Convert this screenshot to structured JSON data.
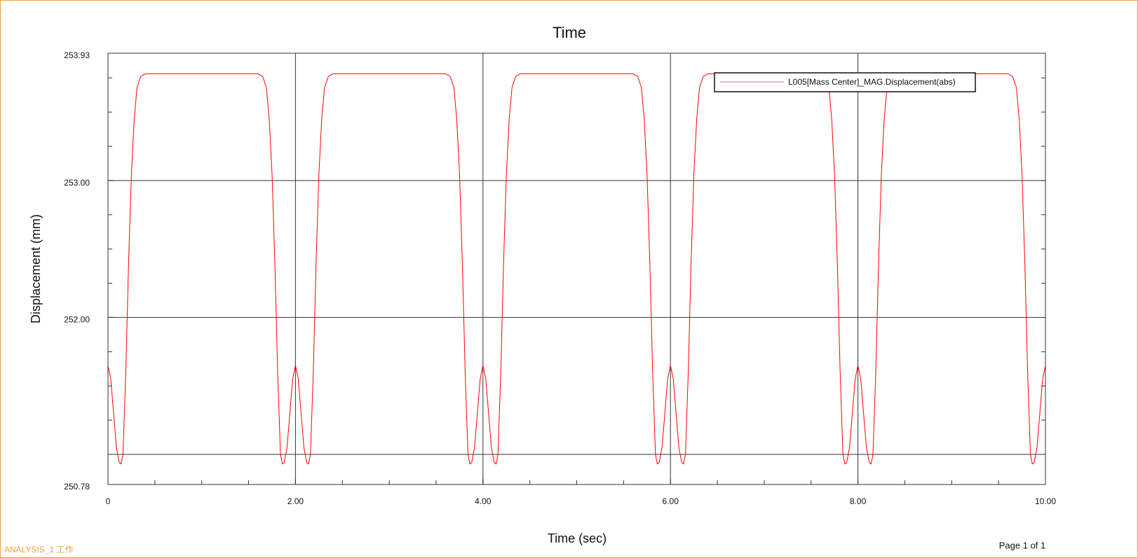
{
  "chart_data": {
    "type": "line",
    "title": "Time",
    "xlabel": "Time (sec)",
    "ylabel": "Displacement (mm)",
    "xlim": [
      0,
      10
    ],
    "ylim": [
      250.78,
      253.93
    ],
    "xticks": [
      0,
      {
        "value": 2,
        "label": "2.00"
      },
      {
        "value": 4,
        "label": "4.00"
      },
      {
        "value": 6,
        "label": "6.00"
      },
      {
        "value": 8,
        "label": "8.00"
      },
      {
        "value": 10,
        "label": "10.00"
      }
    ],
    "yticks": [
      {
        "value": 250.78,
        "label": "250.78"
      },
      {
        "value": 252,
        "label": "252.00"
      },
      {
        "value": 253,
        "label": "253.00"
      },
      {
        "value": 253.93,
        "label": "253.93"
      }
    ],
    "xgrid": [
      2,
      4,
      6,
      8
    ],
    "ygrid": [
      251,
      252,
      253
    ],
    "xminor_step": 0.5,
    "yminor_step": 0.25,
    "legend": "upper right",
    "x": [
      0,
      0.03,
      0.06,
      0.09,
      0.12,
      0.14,
      0.16,
      0.19,
      0.22,
      0.25,
      0.28,
      0.31,
      0.35,
      0.4,
      1.6,
      1.65,
      1.69,
      1.72,
      1.75,
      1.78,
      1.81,
      1.84,
      1.86,
      1.88,
      1.91,
      1.94,
      1.97,
      2,
      2.03,
      2.06,
      2.09,
      2.12,
      2.14,
      2.16,
      2.19,
      2.22,
      2.25,
      2.28,
      2.31,
      2.35,
      2.4,
      3.6,
      3.65,
      3.69,
      3.72,
      3.75,
      3.78,
      3.81,
      3.84,
      3.86,
      3.88,
      3.91,
      3.94,
      3.97,
      4,
      4.03,
      4.06,
      4.09,
      4.12,
      4.14,
      4.16,
      4.19,
      4.22,
      4.25,
      4.28,
      4.31,
      4.35,
      4.4,
      5.6,
      5.65,
      5.69,
      5.72,
      5.75,
      5.78,
      5.81,
      5.84,
      5.86,
      5.88,
      5.91,
      5.94,
      5.97,
      6,
      6.03,
      6.06,
      6.09,
      6.12,
      6.14,
      6.16,
      6.19,
      6.22,
      6.25,
      6.28,
      6.31,
      6.35,
      6.4,
      7.6,
      7.65,
      7.69,
      7.72,
      7.75,
      7.78,
      7.81,
      7.84,
      7.86,
      7.88,
      7.91,
      7.94,
      7.97,
      8,
      8.03,
      8.06,
      8.09,
      8.12,
      8.14,
      8.16,
      8.19,
      8.22,
      8.25,
      8.28,
      8.31,
      8.35,
      8.4,
      9.6,
      9.65,
      9.69,
      9.72,
      9.75,
      9.78,
      9.81,
      9.84,
      9.86,
      9.88,
      9.91,
      9.94,
      9.97,
      10
    ],
    "series": [
      {
        "name": "L005[Mass Center]_MAG.Displacement(abs)",
        "color": "#ff0000",
        "legend_color": "#f4a0a0",
        "values": [
          251.65,
          251.55,
          251.3,
          251.05,
          250.94,
          250.93,
          251,
          251.6,
          252.4,
          253.05,
          253.45,
          253.68,
          253.76,
          253.78,
          253.78,
          253.76,
          253.68,
          253.45,
          253.05,
          252.4,
          251.6,
          251,
          250.93,
          250.94,
          251.05,
          251.3,
          251.55,
          251.65,
          251.55,
          251.3,
          251.05,
          250.94,
          250.93,
          251,
          251.6,
          252.4,
          253.05,
          253.45,
          253.68,
          253.76,
          253.78,
          253.78,
          253.76,
          253.68,
          253.45,
          253.05,
          252.4,
          251.6,
          251,
          250.93,
          250.94,
          251.05,
          251.3,
          251.55,
          251.65,
          251.55,
          251.3,
          251.05,
          250.94,
          250.93,
          251,
          251.6,
          252.4,
          253.05,
          253.45,
          253.68,
          253.76,
          253.78,
          253.78,
          253.76,
          253.68,
          253.45,
          253.05,
          252.4,
          251.6,
          251,
          250.93,
          250.94,
          251.05,
          251.3,
          251.55,
          251.65,
          251.55,
          251.3,
          251.05,
          250.94,
          250.93,
          251,
          251.6,
          252.4,
          253.05,
          253.45,
          253.68,
          253.76,
          253.78,
          253.78,
          253.76,
          253.68,
          253.45,
          253.05,
          252.4,
          251.6,
          251,
          250.93,
          250.94,
          251.05,
          251.3,
          251.55,
          251.65,
          251.55,
          251.3,
          251.05,
          250.94,
          250.93,
          251,
          251.6,
          252.4,
          253.05,
          253.45,
          253.68,
          253.76,
          253.78,
          253.78,
          253.76,
          253.68,
          253.45,
          253.05,
          252.4,
          251.6,
          251,
          250.93,
          250.94,
          251.05,
          251.3,
          251.55,
          251.65
        ]
      }
    ]
  },
  "page_footer": {
    "analysis": "ANALYSIS_1 工作",
    "page": "Page 1 of 1"
  }
}
